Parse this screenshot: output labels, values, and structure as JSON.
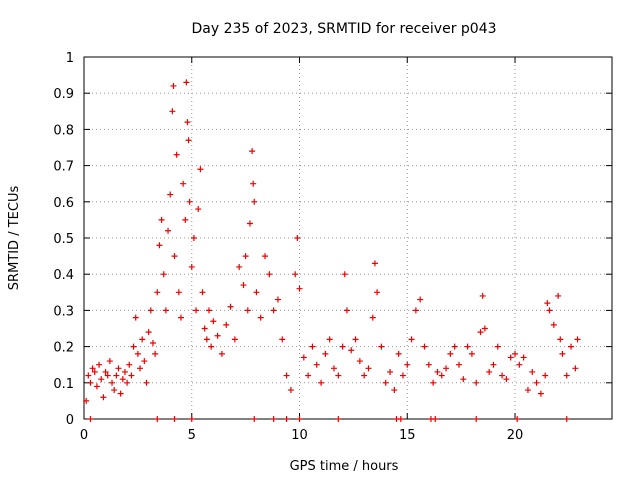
{
  "chart_data": {
    "type": "scatter",
    "title": "Day 235 of 2023, SRMTID for receiver p043",
    "xlabel": "GPS time / hours",
    "ylabel": "SRMTID / TECUs",
    "xlim": [
      0,
      24.5
    ],
    "ylim": [
      0,
      1
    ],
    "xticks": [
      0,
      5,
      10,
      15,
      20
    ],
    "xtick_labels": [
      "0",
      "5",
      "10",
      "15",
      "20"
    ],
    "yticks": [
      0,
      0.1,
      0.2,
      0.3,
      0.4,
      0.5,
      0.6,
      0.7,
      0.8,
      0.9,
      1
    ],
    "ytick_labels": [
      "0",
      "0.1",
      "0.2",
      "0.3",
      "0.4",
      "0.5",
      "0.6",
      "0.7",
      "0.8",
      "0.9",
      "1"
    ],
    "grid": true,
    "marker": "+",
    "color": "#ee0000",
    "series": [
      {
        "name": "SRMTID",
        "points": [
          [
            0.1,
            0.05
          ],
          [
            0.2,
            0.12
          ],
          [
            0.3,
            0.1
          ],
          [
            0.4,
            0.14
          ],
          [
            0.5,
            0.13
          ],
          [
            0.6,
            0.09
          ],
          [
            0.7,
            0.15
          ],
          [
            0.8,
            0.11
          ],
          [
            0.9,
            0.06
          ],
          [
            1.0,
            0.13
          ],
          [
            1.1,
            0.12
          ],
          [
            1.2,
            0.16
          ],
          [
            1.3,
            0.1
          ],
          [
            1.4,
            0.08
          ],
          [
            1.5,
            0.12
          ],
          [
            1.6,
            0.14
          ],
          [
            1.7,
            0.07
          ],
          [
            1.8,
            0.11
          ],
          [
            1.9,
            0.13
          ],
          [
            2.0,
            0.1
          ],
          [
            2.1,
            0.15
          ],
          [
            2.2,
            0.12
          ],
          [
            2.3,
            0.2
          ],
          [
            2.4,
            0.28
          ],
          [
            2.5,
            0.18
          ],
          [
            2.6,
            0.14
          ],
          [
            2.7,
            0.22
          ],
          [
            2.8,
            0.16
          ],
          [
            2.9,
            0.1
          ],
          [
            3.0,
            0.24
          ],
          [
            3.1,
            0.3
          ],
          [
            3.2,
            0.21
          ],
          [
            3.3,
            0.18
          ],
          [
            3.4,
            0.35
          ],
          [
            3.5,
            0.48
          ],
          [
            3.6,
            0.55
          ],
          [
            3.7,
            0.4
          ],
          [
            3.8,
            0.3
          ],
          [
            3.9,
            0.52
          ],
          [
            4.0,
            0.62
          ],
          [
            4.1,
            0.85
          ],
          [
            4.15,
            0.92
          ],
          [
            4.2,
            0.45
          ],
          [
            4.3,
            0.73
          ],
          [
            4.4,
            0.35
          ],
          [
            4.5,
            0.28
          ],
          [
            4.6,
            0.65
          ],
          [
            4.7,
            0.55
          ],
          [
            4.75,
            0.93
          ],
          [
            4.8,
            0.82
          ],
          [
            4.85,
            0.77
          ],
          [
            4.9,
            0.6
          ],
          [
            5.0,
            0.42
          ],
          [
            5.1,
            0.5
          ],
          [
            5.2,
            0.3
          ],
          [
            5.3,
            0.58
          ],
          [
            5.4,
            0.69
          ],
          [
            5.5,
            0.35
          ],
          [
            5.6,
            0.25
          ],
          [
            5.7,
            0.22
          ],
          [
            5.8,
            0.3
          ],
          [
            5.9,
            0.2
          ],
          [
            6.0,
            0.27
          ],
          [
            6.2,
            0.23
          ],
          [
            6.4,
            0.18
          ],
          [
            6.6,
            0.26
          ],
          [
            6.8,
            0.31
          ],
          [
            7.0,
            0.22
          ],
          [
            7.2,
            0.42
          ],
          [
            7.4,
            0.37
          ],
          [
            7.5,
            0.45
          ],
          [
            7.6,
            0.3
          ],
          [
            7.7,
            0.54
          ],
          [
            7.8,
            0.74
          ],
          [
            7.85,
            0.65
          ],
          [
            7.9,
            0.6
          ],
          [
            8.0,
            0.35
          ],
          [
            8.2,
            0.28
          ],
          [
            8.4,
            0.45
          ],
          [
            8.6,
            0.4
          ],
          [
            8.8,
            0.3
          ],
          [
            9.0,
            0.33
          ],
          [
            9.2,
            0.22
          ],
          [
            9.4,
            0.12
          ],
          [
            9.6,
            0.08
          ],
          [
            9.8,
            0.4
          ],
          [
            9.9,
            0.5
          ],
          [
            10.0,
            0.36
          ],
          [
            10.2,
            0.17
          ],
          [
            10.4,
            0.12
          ],
          [
            10.6,
            0.2
          ],
          [
            10.8,
            0.15
          ],
          [
            11.0,
            0.1
          ],
          [
            11.2,
            0.18
          ],
          [
            11.4,
            0.22
          ],
          [
            11.6,
            0.14
          ],
          [
            11.8,
            0.12
          ],
          [
            12.0,
            0.2
          ],
          [
            12.1,
            0.4
          ],
          [
            12.2,
            0.3
          ],
          [
            12.4,
            0.19
          ],
          [
            12.6,
            0.22
          ],
          [
            12.8,
            0.16
          ],
          [
            13.0,
            0.12
          ],
          [
            13.2,
            0.14
          ],
          [
            13.4,
            0.28
          ],
          [
            13.5,
            0.43
          ],
          [
            13.6,
            0.35
          ],
          [
            13.8,
            0.2
          ],
          [
            14.0,
            0.1
          ],
          [
            14.2,
            0.13
          ],
          [
            14.4,
            0.08
          ],
          [
            14.6,
            0.18
          ],
          [
            14.8,
            0.12
          ],
          [
            15.0,
            0.15
          ],
          [
            15.2,
            0.22
          ],
          [
            15.4,
            0.3
          ],
          [
            15.6,
            0.33
          ],
          [
            15.8,
            0.2
          ],
          [
            16.0,
            0.15
          ],
          [
            16.2,
            0.1
          ],
          [
            16.4,
            0.13
          ],
          [
            16.6,
            0.12
          ],
          [
            16.8,
            0.14
          ],
          [
            17.0,
            0.18
          ],
          [
            17.2,
            0.2
          ],
          [
            17.4,
            0.15
          ],
          [
            17.6,
            0.11
          ],
          [
            17.8,
            0.2
          ],
          [
            18.0,
            0.18
          ],
          [
            18.2,
            0.1
          ],
          [
            18.4,
            0.24
          ],
          [
            18.5,
            0.34
          ],
          [
            18.6,
            0.25
          ],
          [
            18.8,
            0.13
          ],
          [
            19.0,
            0.15
          ],
          [
            19.2,
            0.2
          ],
          [
            19.4,
            0.12
          ],
          [
            19.6,
            0.11
          ],
          [
            19.8,
            0.17
          ],
          [
            20.0,
            0.18
          ],
          [
            20.2,
            0.15
          ],
          [
            20.4,
            0.17
          ],
          [
            20.6,
            0.08
          ],
          [
            20.8,
            0.13
          ],
          [
            21.0,
            0.1
          ],
          [
            21.2,
            0.07
          ],
          [
            21.4,
            0.12
          ],
          [
            21.5,
            0.32
          ],
          [
            21.6,
            0.3
          ],
          [
            21.8,
            0.26
          ],
          [
            22.0,
            0.34
          ],
          [
            22.1,
            0.22
          ],
          [
            22.2,
            0.18
          ],
          [
            22.4,
            0.12
          ],
          [
            22.6,
            0.2
          ],
          [
            22.8,
            0.14
          ],
          [
            22.9,
            0.22
          ],
          [
            0.3,
            0.0
          ],
          [
            3.4,
            0.0
          ],
          [
            4.2,
            0.0
          ],
          [
            5.0,
            0.0
          ],
          [
            7.9,
            0.0
          ],
          [
            8.8,
            0.0
          ],
          [
            9.4,
            0.0
          ],
          [
            10.0,
            0.0
          ],
          [
            11.8,
            0.0
          ],
          [
            14.5,
            0.0
          ],
          [
            14.7,
            0.0
          ],
          [
            16.1,
            0.0
          ],
          [
            16.3,
            0.0
          ],
          [
            18.2,
            0.0
          ],
          [
            20.1,
            0.0
          ],
          [
            22.4,
            0.0
          ]
        ]
      }
    ]
  }
}
